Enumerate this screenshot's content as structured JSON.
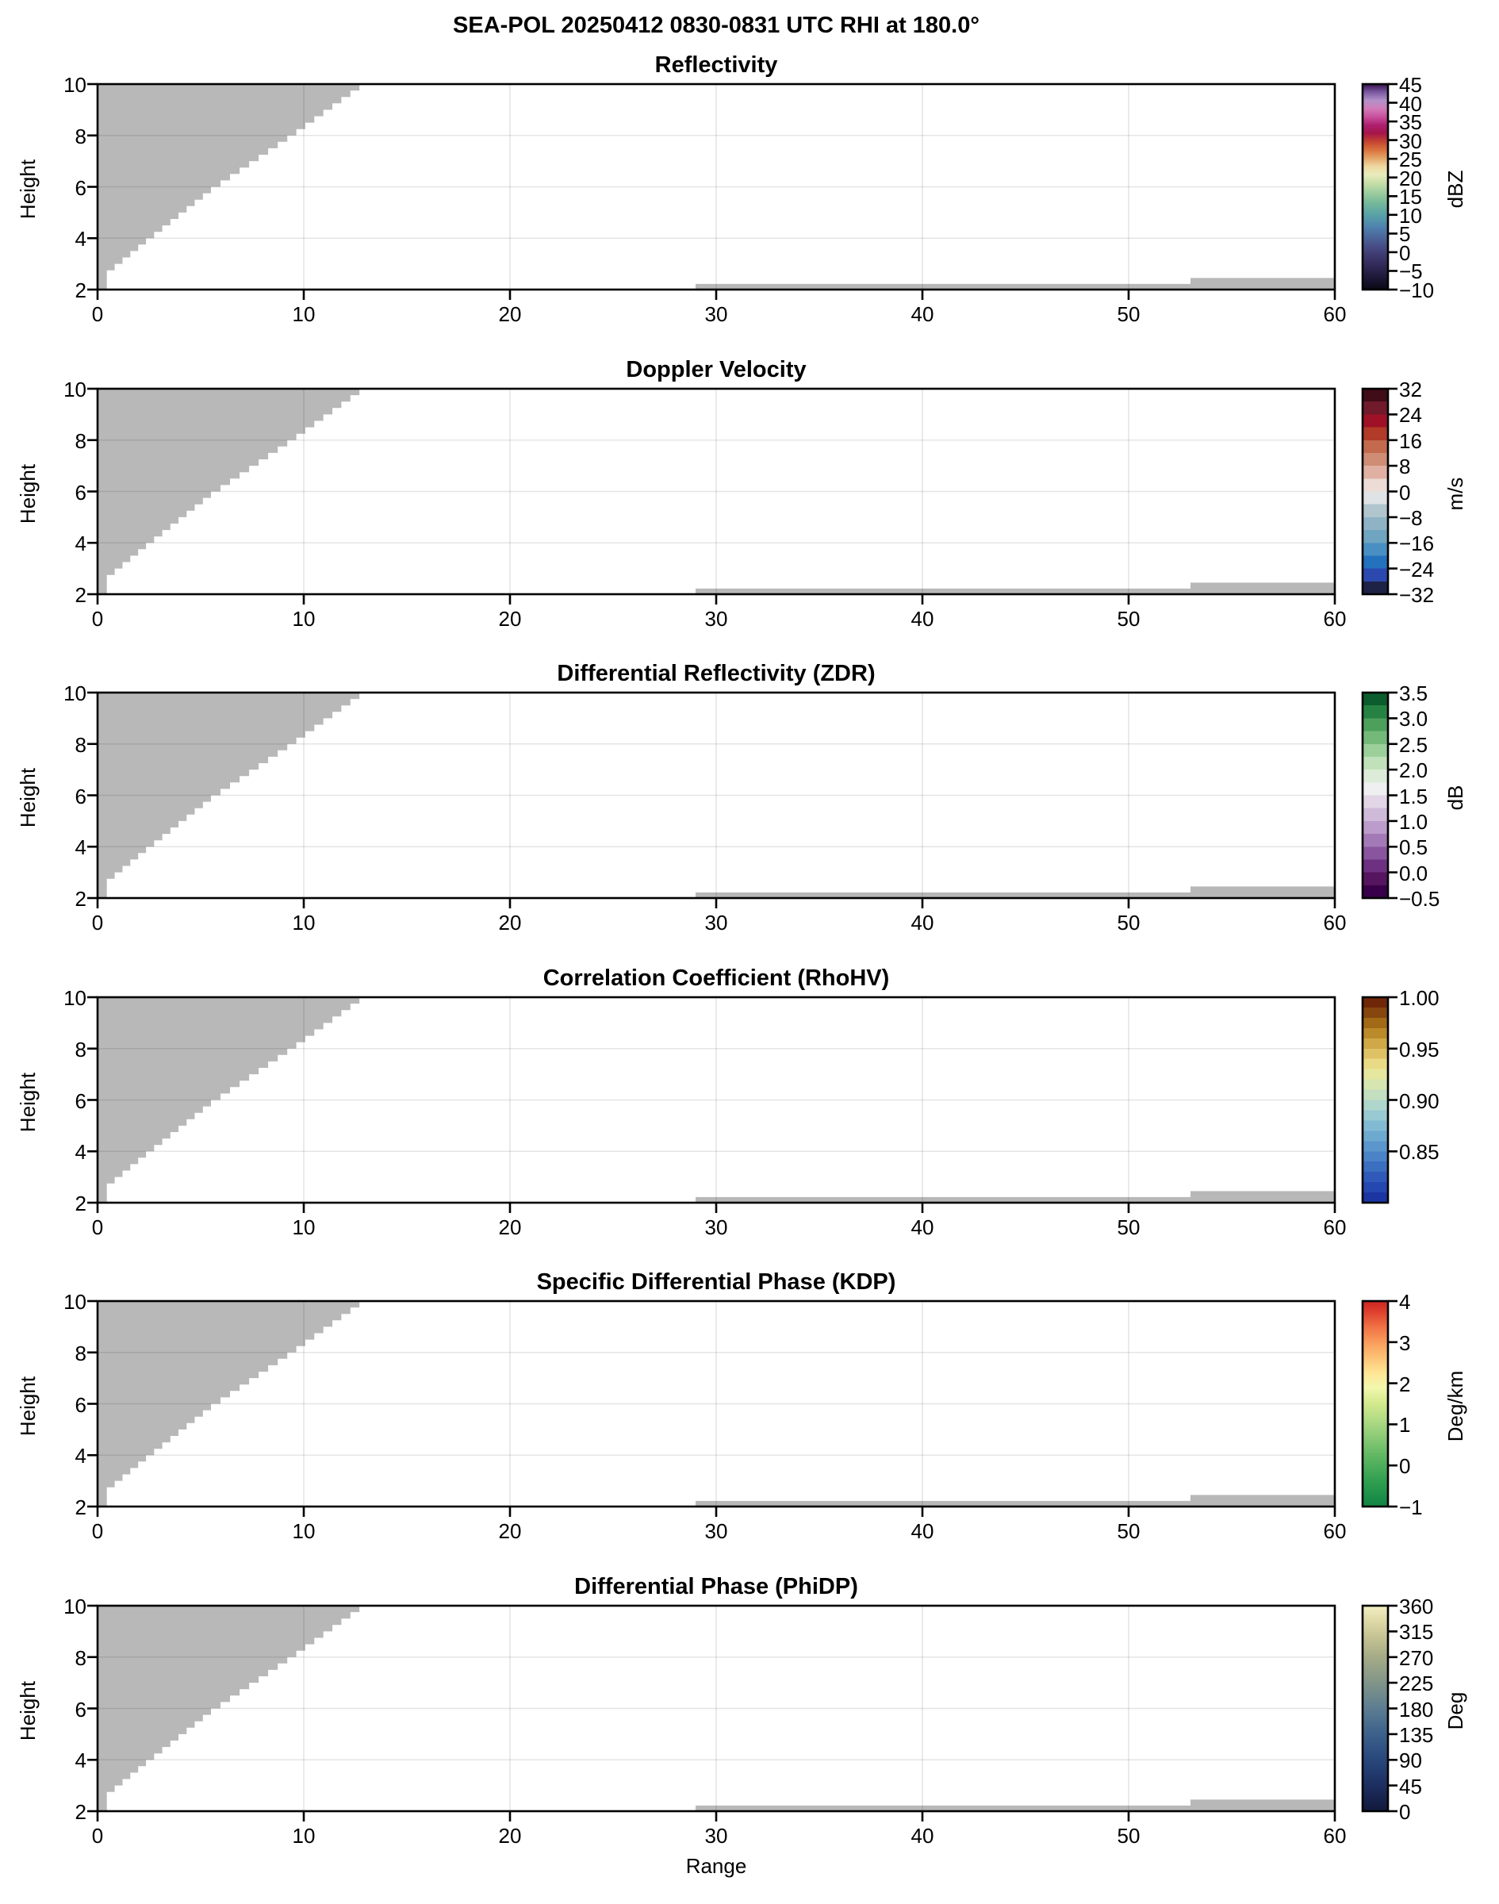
{
  "figure": {
    "suptitle": "SEA-POL 20250412 0830-0831 UTC RHI at 180.0°",
    "range_label": "Range",
    "height_label": "Height",
    "colors": {
      "background": "#ffffff",
      "text": "#000000",
      "mask_gray": "#b8b8b8",
      "grid": "rgba(0,0,0,0.10)",
      "spine": "#000000"
    }
  },
  "chart_data": {
    "type": "heatmap",
    "subtype": "radar RHI cross-sections, 6 vertically stacked panels with shared geometry",
    "x_label": "Range",
    "y_label": "Height",
    "x_range": [
      0,
      60
    ],
    "y_range": [
      2,
      10
    ],
    "x_tick_vals": [
      0,
      10,
      20,
      30,
      40,
      50,
      60
    ],
    "x_tick_labels": [
      "0",
      "10",
      "20",
      "30",
      "40",
      "50",
      "60"
    ],
    "y_tick_vals": [
      2,
      4,
      6,
      8,
      10
    ],
    "y_tick_labels": [
      "2",
      "4",
      "6",
      "8",
      "10"
    ],
    "grid": true,
    "data_note": "no precipitation echoes plotted; only gray no-data mask regions are visible in every panel",
    "no_data_mask": {
      "description": "gray stair-stepped no-data wedge in upper-left of each panel plus thin gray strips along the bottom at far range",
      "step_dy": 0.25,
      "wedge_boundary_anchors": [
        [
          0.45,
          2.0
        ],
        [
          0.45,
          2.75
        ],
        [
          2.35,
          4.0
        ],
        [
          5.5,
          6.0
        ],
        [
          9.2,
          8.0
        ],
        [
          12.7,
          10.0
        ]
      ],
      "bottom_strips": [
        {
          "x0": 29,
          "x1": 53,
          "y0": 2.0,
          "y1": 2.22
        },
        {
          "x0": 53,
          "x1": 60,
          "y0": 2.0,
          "y1": 2.45
        }
      ]
    },
    "panels": [
      {
        "title": "Reflectivity",
        "units": "dBZ",
        "cbar_min": -10,
        "cbar_max": 45,
        "cbar_tick_vals": [
          45,
          40,
          35,
          30,
          25,
          20,
          15,
          10,
          5,
          0,
          -5,
          -10
        ],
        "cbar_tick_labels": [
          "45",
          "40",
          "35",
          "30",
          "25",
          "20",
          "15",
          "10",
          "5",
          "0",
          "−5",
          "−10"
        ],
        "cbar_gradient": {
          "discrete": false,
          "stops": [
            [
              0,
              "#0a0714"
            ],
            [
              0.06,
              "#1e1838"
            ],
            [
              0.12,
              "#322a58"
            ],
            [
              0.18,
              "#423f77"
            ],
            [
              0.24,
              "#4a5d93"
            ],
            [
              0.3,
              "#4e7fae"
            ],
            [
              0.36,
              "#57a0a8"
            ],
            [
              0.42,
              "#74b89a"
            ],
            [
              0.47,
              "#9ccc9e"
            ],
            [
              0.52,
              "#c8dfa9"
            ],
            [
              0.56,
              "#e9ecbc"
            ],
            [
              0.6,
              "#eed7a0"
            ],
            [
              0.64,
              "#e3a568"
            ],
            [
              0.68,
              "#d9713d"
            ],
            [
              0.72,
              "#c44430"
            ],
            [
              0.76,
              "#a6164a"
            ],
            [
              0.8,
              "#ad1f6e"
            ],
            [
              0.84,
              "#c94f9d"
            ],
            [
              0.88,
              "#d27ab8"
            ],
            [
              0.92,
              "#b391c9"
            ],
            [
              0.96,
              "#7b5aa2"
            ],
            [
              1,
              "#3a1150"
            ]
          ]
        }
      },
      {
        "title": "Doppler Velocity",
        "units": "m/s",
        "cbar_min": -32,
        "cbar_max": 32,
        "cbar_tick_vals": [
          32,
          24,
          16,
          8,
          0,
          -8,
          -16,
          -24,
          -32
        ],
        "cbar_tick_labels": [
          "32",
          "24",
          "16",
          "8",
          "0",
          "−8",
          "−16",
          "−24",
          "−32"
        ],
        "cbar_gradient": {
          "discrete": true,
          "colors": [
            "#1e2246",
            "#2b49af",
            "#2471bd",
            "#4a8fc3",
            "#6fa5c1",
            "#8fb3c5",
            "#b0c5cd",
            "#dfe3e5",
            "#ecdcd5",
            "#e0b0a2",
            "#ce8d74",
            "#c36a4e",
            "#b13a28",
            "#9e1126",
            "#701a2b",
            "#3f0c17"
          ]
        }
      },
      {
        "title": "Differential Reflectivity (ZDR)",
        "units": "dB",
        "cbar_min": -0.5,
        "cbar_max": 3.5,
        "cbar_tick_vals": [
          3.5,
          3.0,
          2.5,
          2.0,
          1.5,
          1.0,
          0.5,
          0.0,
          -0.5
        ],
        "cbar_tick_labels": [
          "3.5",
          "3.0",
          "2.5",
          "2.0",
          "1.5",
          "1.0",
          "0.5",
          "0.0",
          "−0.5"
        ],
        "cbar_gradient": {
          "discrete": true,
          "colors": [
            "#38004a",
            "#55155f",
            "#6e3181",
            "#8a559f",
            "#a379b7",
            "#bb9cca",
            "#cfbbd9",
            "#e2d6e6",
            "#efeef0",
            "#ddecd8",
            "#c1e1bb",
            "#9cd09a",
            "#74b97a",
            "#4d9f5c",
            "#268243",
            "#0c5c2d"
          ]
        }
      },
      {
        "title": "Correlation Coefficient (RhoHV)",
        "units": "",
        "cbar_min": 0.8,
        "cbar_max": 1.0,
        "cbar_tick_vals": [
          1.0,
          0.95,
          0.9,
          0.85
        ],
        "cbar_tick_labels": [
          "1.00",
          "0.95",
          "0.90",
          "0.85"
        ],
        "cbar_gradient": {
          "discrete": true,
          "colors": [
            "#1b35a3",
            "#2547b0",
            "#2f5ab9",
            "#3b6fc0",
            "#4a84c7",
            "#5b97cc",
            "#6ea9d0",
            "#83bad3",
            "#99c9d2",
            "#afd6cc",
            "#c4dfc0",
            "#d7e5b0",
            "#e5e79f",
            "#e9da85",
            "#e0c266",
            "#d0a847",
            "#bb8a2b",
            "#a26a17",
            "#86460e",
            "#702708"
          ]
        }
      },
      {
        "title": "Specific Differential Phase (KDP)",
        "units": "Deg/km",
        "cbar_min": -1,
        "cbar_max": 4,
        "cbar_tick_vals": [
          4,
          3,
          2,
          1,
          0,
          -1
        ],
        "cbar_tick_labels": [
          "4",
          "3",
          "2",
          "1",
          "0",
          "−1"
        ],
        "cbar_gradient": {
          "discrete": false,
          "stops": [
            [
              0,
              "#108445"
            ],
            [
              0.12,
              "#2f9e4f"
            ],
            [
              0.25,
              "#62b863"
            ],
            [
              0.38,
              "#9ed37e"
            ],
            [
              0.5,
              "#d3e98e"
            ],
            [
              0.58,
              "#f2f7ad"
            ],
            [
              0.65,
              "#fee695"
            ],
            [
              0.72,
              "#fdc478"
            ],
            [
              0.8,
              "#f99d5b"
            ],
            [
              0.88,
              "#f06e43"
            ],
            [
              0.95,
              "#dd3f2d"
            ],
            [
              1,
              "#cc2522"
            ]
          ]
        }
      },
      {
        "title": "Differential Phase (PhiDP)",
        "units": "Deg",
        "cbar_min": 0,
        "cbar_max": 360,
        "cbar_tick_vals": [
          360,
          315,
          270,
          225,
          180,
          135,
          90,
          45,
          0
        ],
        "cbar_tick_labels": [
          "360",
          "315",
          "270",
          "225",
          "180",
          "135",
          "90",
          "45",
          "0"
        ],
        "cbar_gradient": {
          "discrete": false,
          "stops": [
            [
              0,
              "#12193b"
            ],
            [
              0.12,
              "#1c2d5e"
            ],
            [
              0.25,
              "#28477c"
            ],
            [
              0.38,
              "#3d628b"
            ],
            [
              0.5,
              "#5c7d92"
            ],
            [
              0.62,
              "#7f9489"
            ],
            [
              0.75,
              "#a5ab86"
            ],
            [
              0.85,
              "#c6c393"
            ],
            [
              0.94,
              "#e3ddab"
            ],
            [
              1,
              "#f3efc3"
            ]
          ]
        }
      }
    ]
  }
}
